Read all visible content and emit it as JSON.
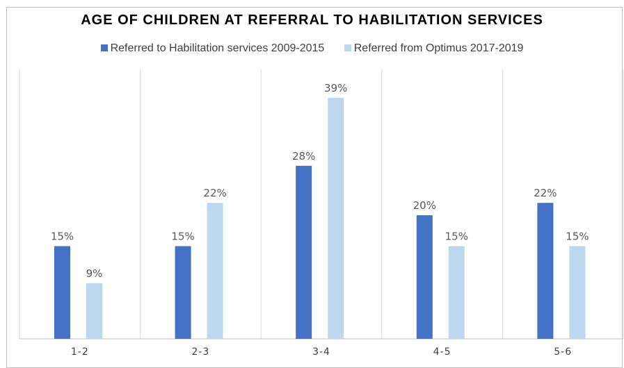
{
  "chart_data": {
    "type": "bar",
    "title": "AGE OF CHILDREN AT REFERRAL TO HABILITATION SERVICES",
    "xlabel": "",
    "ylabel": "",
    "categories": [
      "1-2",
      "2-3",
      "3-4",
      "4-5",
      "5-6"
    ],
    "series": [
      {
        "name": "Referred to Habilitation services 2009-2015",
        "color": "#4472c4",
        "values": [
          15,
          15,
          28,
          20,
          22
        ],
        "labels": [
          "15%",
          "15%",
          "28%",
          "20%",
          "22%"
        ]
      },
      {
        "name": "Referred from Optimus 2017-2019",
        "color": "#bdd7ee",
        "values": [
          9,
          22,
          39,
          15,
          15
        ],
        "labels": [
          "9%",
          "22%",
          "39%",
          "15%",
          "15%"
        ]
      }
    ],
    "ylim": [
      0,
      45
    ],
    "grid": "vertical-separators",
    "legend": "top",
    "value_format": "percent"
  }
}
